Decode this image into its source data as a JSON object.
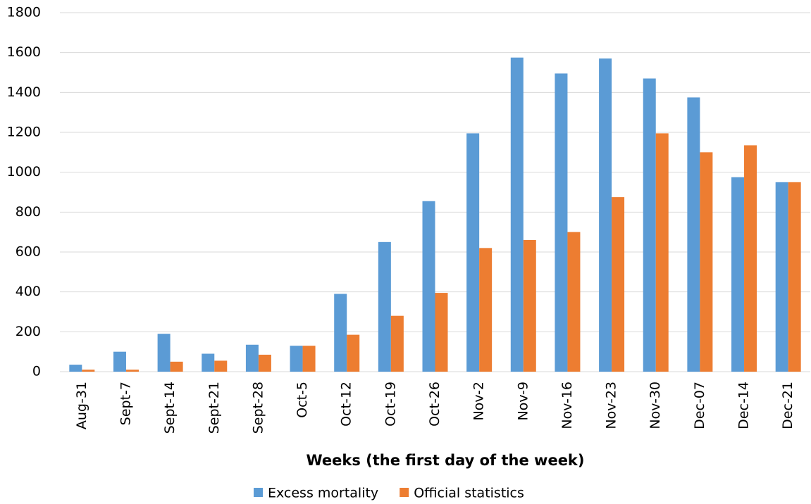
{
  "chart_data": {
    "type": "bar",
    "x_label": "Weeks (the first day of the week)",
    "categories": [
      "Aug-31",
      "Sept-7",
      "Sept-14",
      "Sept-21",
      "Sept-28",
      "Oct-5",
      "Oct-12",
      "Oct-19",
      "Oct-26",
      "Nov-2",
      "Nov-9",
      "Nov-16",
      "Nov-23",
      "Nov-30",
      "Dec-07",
      "Dec-14",
      "Dec-21"
    ],
    "series": [
      {
        "name": "Excess mortality",
        "color": "#5b9bd5",
        "values": [
          35,
          100,
          190,
          90,
          135,
          130,
          390,
          650,
          855,
          1195,
          1575,
          1495,
          1570,
          1470,
          1375,
          975,
          950
        ]
      },
      {
        "name": "Official statistics",
        "color": "#ed7d31",
        "values": [
          10,
          10,
          50,
          55,
          85,
          130,
          185,
          280,
          395,
          620,
          660,
          700,
          875,
          1195,
          1100,
          1135,
          950
        ]
      }
    ],
    "ylim": [
      0,
      1800
    ],
    "yticks": [
      0,
      200,
      400,
      600,
      800,
      1000,
      1200,
      1400,
      1600,
      1800
    ],
    "grid": true,
    "legend": "bottom"
  }
}
